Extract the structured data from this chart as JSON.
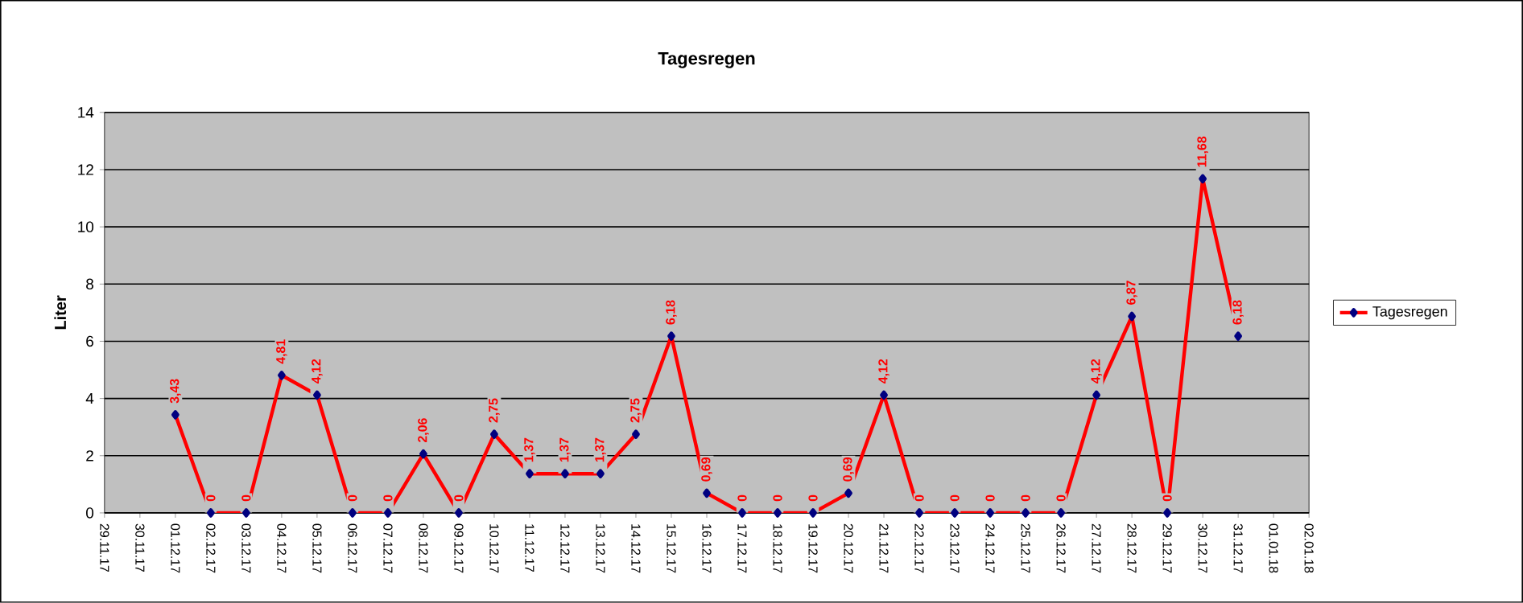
{
  "chart_data": {
    "type": "line",
    "title": "Tagesregen",
    "ylabel": "Liter",
    "categories": [
      "29.11.17",
      "30.11.17",
      "01.12.17",
      "02.12.17",
      "03.12.17",
      "04.12.17",
      "05.12.17",
      "06.12.17",
      "07.12.17",
      "08.12.17",
      "09.12.17",
      "10.12.17",
      "11.12.17",
      "12.12.17",
      "13.12.17",
      "14.12.17",
      "15.12.17",
      "16.12.17",
      "17.12.17",
      "18.12.17",
      "19.12.17",
      "20.12.17",
      "21.12.17",
      "22.12.17",
      "23.12.17",
      "24.12.17",
      "25.12.17",
      "26.12.17",
      "27.12.17",
      "28.12.17",
      "29.12.17",
      "30.12.17",
      "31.12.17",
      "01.01.18",
      "02.01.18"
    ],
    "series": [
      {
        "name": "Tagesregen",
        "color": "#ff0000",
        "values": [
          null,
          null,
          3.43,
          0,
          0,
          4.81,
          4.12,
          0,
          0,
          2.06,
          0,
          2.75,
          1.37,
          1.37,
          1.37,
          2.75,
          6.18,
          0.69,
          0,
          0,
          0,
          0.69,
          4.12,
          0,
          0,
          0,
          0,
          0,
          4.12,
          6.87,
          0,
          11.68,
          6.18,
          null,
          null
        ],
        "value_labels": [
          null,
          null,
          "3,43",
          "0",
          "0",
          "4,81",
          "4,12",
          "0",
          "0",
          "2,06",
          "0",
          "2,75",
          "1,37",
          "1,37",
          "1,37",
          "2,75",
          "6,18",
          "0,69",
          "0",
          "0",
          "0",
          "0,69",
          "4,12",
          "0",
          "0",
          "0",
          "0",
          "0",
          "4,12",
          "6,87",
          "0",
          "11,68",
          "6,18",
          null,
          null
        ]
      }
    ],
    "ylim": [
      0,
      14
    ],
    "yticks": [
      0,
      2,
      4,
      6,
      8,
      10,
      12,
      14
    ],
    "grid": "y",
    "legend": "right",
    "marker": "diamond",
    "line_style": "solid"
  }
}
